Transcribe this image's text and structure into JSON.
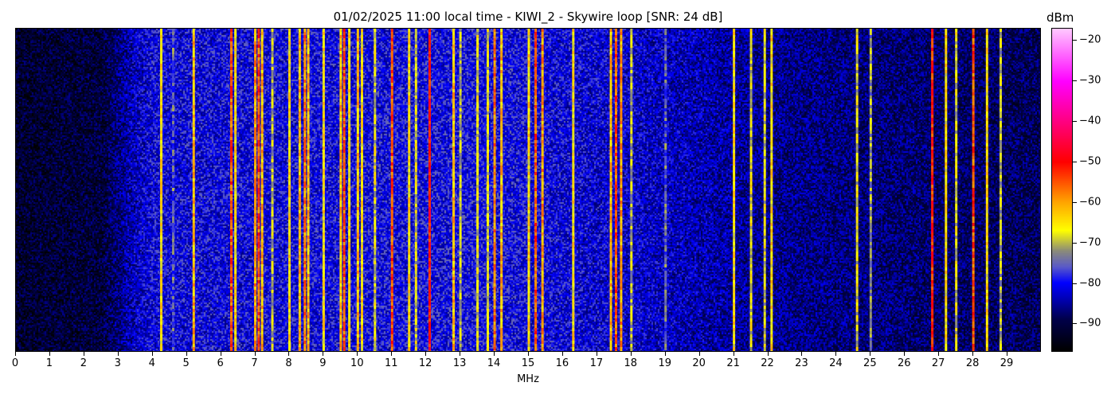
{
  "chart_data": {
    "type": "heatmap",
    "title": "01/02/2025 11:00 local time - KIWI_2 - Skywire loop [SNR: 24 dB]",
    "xlabel": "MHz",
    "xlim": [
      0,
      30
    ],
    "xticks": [
      0,
      1,
      2,
      3,
      4,
      5,
      6,
      7,
      8,
      9,
      10,
      11,
      12,
      13,
      14,
      15,
      16,
      17,
      18,
      19,
      20,
      21,
      22,
      23,
      24,
      25,
      26,
      27,
      28,
      29
    ],
    "colorbar": {
      "label": "dBm",
      "range": [
        -97,
        -17
      ],
      "ticks": [
        -20,
        -30,
        -40,
        -50,
        -60,
        -70,
        -80,
        -90
      ],
      "colormap": [
        {
          "dbm": -97,
          "color": "#000000"
        },
        {
          "dbm": -89,
          "color": "#00004a"
        },
        {
          "dbm": -84,
          "color": "#0000b4"
        },
        {
          "dbm": -80,
          "color": "#0000ff"
        },
        {
          "dbm": -76,
          "color": "#5a5ac8"
        },
        {
          "dbm": -72,
          "color": "#8c8c78"
        },
        {
          "dbm": -67,
          "color": "#ffff00"
        },
        {
          "dbm": -60,
          "color": "#ffa500"
        },
        {
          "dbm": -50,
          "color": "#ff0000"
        },
        {
          "dbm": -40,
          "color": "#ff0080"
        },
        {
          "dbm": -30,
          "color": "#ff00ff"
        },
        {
          "dbm": -17,
          "color": "#ffc8ff"
        }
      ]
    },
    "noise_floor": [
      {
        "mhz": 0,
        "dbm": -92
      },
      {
        "mhz": 2.5,
        "dbm": -91
      },
      {
        "mhz": 3.3,
        "dbm": -84
      },
      {
        "mhz": 4,
        "dbm": -81
      },
      {
        "mhz": 6,
        "dbm": -81
      },
      {
        "mhz": 14,
        "dbm": -80
      },
      {
        "mhz": 19,
        "dbm": -83
      },
      {
        "mhz": 22,
        "dbm": -86
      },
      {
        "mhz": 30,
        "dbm": -89
      }
    ],
    "signals": [
      {
        "mhz": 4.25,
        "dbm": -65
      },
      {
        "mhz": 4.6,
        "dbm": -75
      },
      {
        "mhz": 5.2,
        "dbm": -62
      },
      {
        "mhz": 6.3,
        "dbm": -55
      },
      {
        "mhz": 6.42,
        "dbm": -65
      },
      {
        "mhz": 7.0,
        "dbm": -60
      },
      {
        "mhz": 7.1,
        "dbm": -55
      },
      {
        "mhz": 7.2,
        "dbm": -62
      },
      {
        "mhz": 7.5,
        "dbm": -70
      },
      {
        "mhz": 8.0,
        "dbm": -65
      },
      {
        "mhz": 8.3,
        "dbm": -62
      },
      {
        "mhz": 8.45,
        "dbm": -58
      },
      {
        "mhz": 8.55,
        "dbm": -62
      },
      {
        "mhz": 9.0,
        "dbm": -65
      },
      {
        "mhz": 9.5,
        "dbm": -62
      },
      {
        "mhz": 9.6,
        "dbm": -55
      },
      {
        "mhz": 9.75,
        "dbm": -65
      },
      {
        "mhz": 10.0,
        "dbm": -62
      },
      {
        "mhz": 10.12,
        "dbm": -65
      },
      {
        "mhz": 10.5,
        "dbm": -68
      },
      {
        "mhz": 11.0,
        "dbm": -55
      },
      {
        "mhz": 11.5,
        "dbm": -65
      },
      {
        "mhz": 11.7,
        "dbm": -68
      },
      {
        "mhz": 12.1,
        "dbm": -50
      },
      {
        "mhz": 12.8,
        "dbm": -62
      },
      {
        "mhz": 13.0,
        "dbm": -70
      },
      {
        "mhz": 13.5,
        "dbm": -68
      },
      {
        "mhz": 13.8,
        "dbm": -68
      },
      {
        "mhz": 14.0,
        "dbm": -58
      },
      {
        "mhz": 14.2,
        "dbm": -62
      },
      {
        "mhz": 15.0,
        "dbm": -65
      },
      {
        "mhz": 15.2,
        "dbm": -55
      },
      {
        "mhz": 15.4,
        "dbm": -60
      },
      {
        "mhz": 16.3,
        "dbm": -65
      },
      {
        "mhz": 17.4,
        "dbm": -62
      },
      {
        "mhz": 17.55,
        "dbm": -55
      },
      {
        "mhz": 17.7,
        "dbm": -60
      },
      {
        "mhz": 18.0,
        "dbm": -70
      },
      {
        "mhz": 19.0,
        "dbm": -75
      },
      {
        "mhz": 21.0,
        "dbm": -65
      },
      {
        "mhz": 21.5,
        "dbm": -68
      },
      {
        "mhz": 21.9,
        "dbm": -68
      },
      {
        "mhz": 22.1,
        "dbm": -65
      },
      {
        "mhz": 24.6,
        "dbm": -68
      },
      {
        "mhz": 25.0,
        "dbm": -72
      },
      {
        "mhz": 26.8,
        "dbm": -52
      },
      {
        "mhz": 27.2,
        "dbm": -65
      },
      {
        "mhz": 27.5,
        "dbm": -68
      },
      {
        "mhz": 28.0,
        "dbm": -55
      },
      {
        "mhz": 28.4,
        "dbm": -65
      },
      {
        "mhz": 28.8,
        "dbm": -70
      }
    ]
  }
}
